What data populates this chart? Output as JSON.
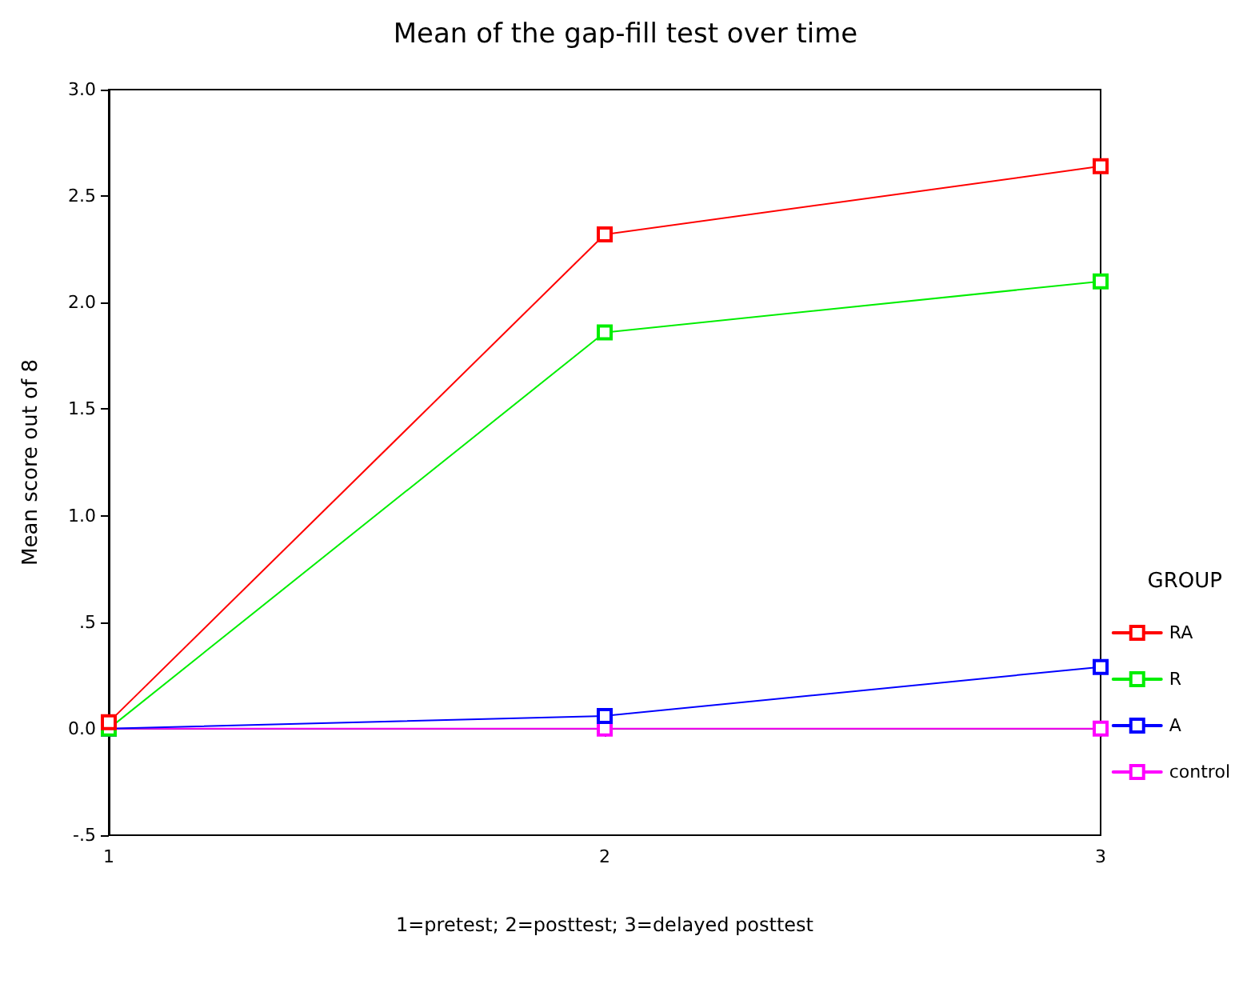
{
  "chart_data": {
    "type": "line",
    "title": "Mean of the gap-fill test over time",
    "xlabel": "1=pretest; 2=posttest; 3=delayed posttest",
    "ylabel": "Mean score out of 8",
    "legend_title": "GROUP",
    "x": [
      1,
      2,
      3
    ],
    "series": [
      {
        "name": "RA",
        "color": "#ff0000",
        "values": [
          0.03,
          2.32,
          2.64
        ]
      },
      {
        "name": "R",
        "color": "#00ee00",
        "values": [
          0,
          1.86,
          2.1
        ]
      },
      {
        "name": "A",
        "color": "#0000ff",
        "values": [
          0,
          0.06,
          0.29
        ]
      },
      {
        "name": "control",
        "color": "#ff00ff",
        "values": [
          0,
          0,
          0
        ]
      }
    ],
    "xlim": [
      1,
      3
    ],
    "xticks": [
      1,
      2,
      3
    ],
    "ylim": [
      -0.5,
      3
    ],
    "yticks": [
      {
        "value": -0.5,
        "label": "-.5"
      },
      {
        "value": 0,
        "label": "0.0"
      },
      {
        "value": 0.5,
        "label": ".5"
      },
      {
        "value": 1,
        "label": "1.0"
      },
      {
        "value": 1.5,
        "label": "1.5"
      },
      {
        "value": 2,
        "label": "2.0"
      },
      {
        "value": 2.5,
        "label": "2.5"
      },
      {
        "value": 3,
        "label": "3.0"
      }
    ],
    "legend": "right",
    "marker": "square",
    "line_style": "solid"
  }
}
